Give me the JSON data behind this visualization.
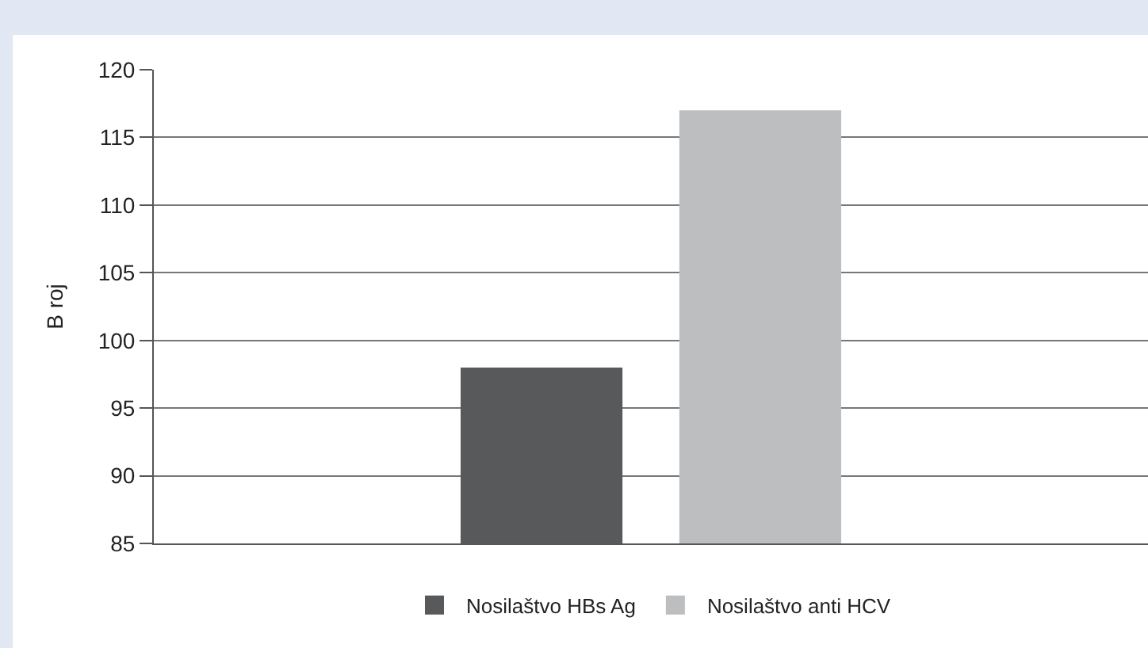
{
  "chart_data": {
    "type": "bar",
    "ylabel": "B roj",
    "categories": [
      null
    ],
    "series": [
      {
        "name": "Nosilaštvo HBs Ag",
        "color": "#58595b",
        "values": [
          98
        ]
      },
      {
        "name": "Nosilaštvo anti HCV",
        "color": "#bcbec0",
        "values": [
          117
        ]
      }
    ],
    "ylim": [
      85,
      120
    ],
    "yticks": [
      85,
      90,
      95,
      100,
      105,
      110,
      115,
      120
    ],
    "grid": "y",
    "legend": "bottom"
  }
}
